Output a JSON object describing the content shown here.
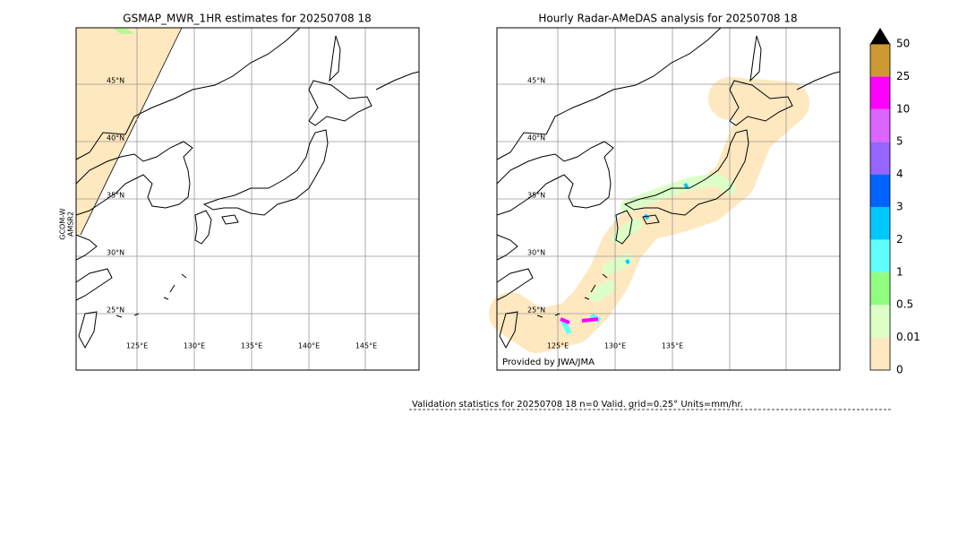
{
  "left_panel": {
    "title": "GSMAP_MWR_1HR estimates for 20250708 18",
    "side_label": [
      "GCOM-W",
      "AMSR2"
    ],
    "lat_labels": [
      "45°N",
      "40°N",
      "35°N",
      "30°N",
      "25°N"
    ],
    "lon_labels": [
      "125°E",
      "130°E",
      "135°E",
      "140°E",
      "145°E"
    ]
  },
  "right_panel": {
    "title": "Hourly Radar-AMeDAS analysis for 20250708 18",
    "lat_labels": [
      "45°N",
      "40°N",
      "35°N",
      "30°N",
      "25°N"
    ],
    "lon_labels": [
      "125°E",
      "130°E",
      "135°E"
    ],
    "credit": "Provided by JWA/JMA"
  },
  "colorbar": {
    "levels": [
      {
        "label": "0",
        "color": "#fee8bf"
      },
      {
        "label": "0.01",
        "color": "#dcffc8"
      },
      {
        "label": "0.5",
        "color": "#90ff80"
      },
      {
        "label": "1",
        "color": "#60ffff"
      },
      {
        "label": "2",
        "color": "#00c8ff"
      },
      {
        "label": "3",
        "color": "#0064ff"
      },
      {
        "label": "4",
        "color": "#9664ff"
      },
      {
        "label": "5",
        "color": "#dc64ff"
      },
      {
        "label": "10",
        "color": "#ff00ff"
      },
      {
        "label": "25",
        "color": "#cc9933"
      },
      {
        "label": "50",
        "color": "#000000"
      }
    ]
  },
  "footer": "Validation statistics for 20250708 18  n=0 Valid. grid=0.25° Units=mm/hr."
}
